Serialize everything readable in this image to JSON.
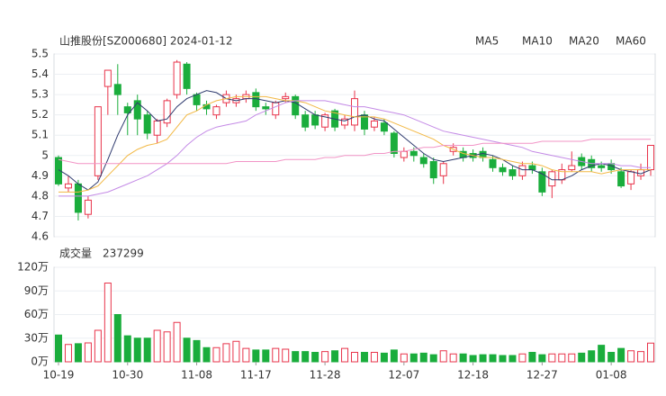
{
  "chart_data": [
    {
      "type": "candlestick",
      "title": "山推股份[SZ000680] 2024-01-12",
      "categories": [
        "10-19",
        null,
        null,
        null,
        null,
        null,
        null,
        "10-30",
        null,
        null,
        null,
        null,
        null,
        null,
        "11-08",
        null,
        null,
        null,
        null,
        null,
        "11-17",
        null,
        null,
        null,
        null,
        null,
        null,
        "11-28",
        null,
        null,
        null,
        null,
        null,
        null,
        null,
        "12-07",
        null,
        null,
        null,
        null,
        null,
        null,
        "12-18",
        null,
        null,
        null,
        null,
        null,
        null,
        "12-27",
        null,
        null,
        null,
        null,
        null,
        null,
        "01-08",
        null,
        null,
        null,
        null
      ],
      "open": [
        4.99,
        4.84,
        4.86,
        4.71,
        4.9,
        5.34,
        5.35,
        5.24,
        5.27,
        5.2,
        5.1,
        5.16,
        5.3,
        5.45,
        5.3,
        5.25,
        5.2,
        5.26,
        5.26,
        5.28,
        5.31,
        5.24,
        5.2,
        5.28,
        5.29,
        5.2,
        5.2,
        5.14,
        5.22,
        5.15,
        5.15,
        5.2,
        5.14,
        5.16,
        5.11,
        4.99,
        5.02,
        4.99,
        4.97,
        4.9,
        5.02,
        5.02,
        5.01,
        5.02,
        4.98,
        4.94,
        4.93,
        4.9,
        4.95,
        4.92,
        4.85,
        4.88,
        4.93,
        4.99,
        4.98,
        4.95,
        4.96,
        4.92,
        4.86,
        4.9,
        4.93
      ],
      "high": [
        5.0,
        4.9,
        4.88,
        4.8,
        5.24,
        5.42,
        5.45,
        5.26,
        5.3,
        5.22,
        5.18,
        5.28,
        5.47,
        5.46,
        5.31,
        5.27,
        5.25,
        5.32,
        5.3,
        5.32,
        5.33,
        5.26,
        5.27,
        5.31,
        5.3,
        5.22,
        5.22,
        5.21,
        5.23,
        5.2,
        5.32,
        5.22,
        5.19,
        5.18,
        5.12,
        5.04,
        5.04,
        5.01,
        4.99,
        4.97,
        5.06,
        5.04,
        5.03,
        5.04,
        5.0,
        4.96,
        4.95,
        4.97,
        4.97,
        4.94,
        4.93,
        4.96,
        5.02,
        5.01,
        5.0,
        4.97,
        4.98,
        4.94,
        4.93,
        4.96,
        5.05
      ],
      "low": [
        4.85,
        4.82,
        4.68,
        4.69,
        4.88,
        5.2,
        5.2,
        5.1,
        5.1,
        5.08,
        5.06,
        5.14,
        5.28,
        5.3,
        5.22,
        5.2,
        5.18,
        5.24,
        5.24,
        5.26,
        5.22,
        5.2,
        5.18,
        5.26,
        5.18,
        5.12,
        5.13,
        5.12,
        5.12,
        5.13,
        5.12,
        5.1,
        5.12,
        5.1,
        4.99,
        4.97,
        4.97,
        4.94,
        4.86,
        4.86,
        5.0,
        4.97,
        4.97,
        4.97,
        4.92,
        4.9,
        4.88,
        4.88,
        4.91,
        4.8,
        4.79,
        4.86,
        4.92,
        4.93,
        4.92,
        4.92,
        4.91,
        4.84,
        4.83,
        4.88,
        4.9
      ],
      "close": [
        4.86,
        4.86,
        4.72,
        4.78,
        5.24,
        5.42,
        5.3,
        5.21,
        5.18,
        5.11,
        5.17,
        5.27,
        5.46,
        5.33,
        5.25,
        5.23,
        5.24,
        5.3,
        5.28,
        5.3,
        5.24,
        5.23,
        5.26,
        5.29,
        5.2,
        5.14,
        5.15,
        5.2,
        5.14,
        5.18,
        5.28,
        5.13,
        5.17,
        5.12,
        5.01,
        5.02,
        5.0,
        4.96,
        4.89,
        4.96,
        5.04,
        4.99,
        4.99,
        4.99,
        4.94,
        4.92,
        4.9,
        4.95,
        4.93,
        4.82,
        4.92,
        4.93,
        4.95,
        4.95,
        4.94,
        4.94,
        4.93,
        4.85,
        4.92,
        4.93,
        5.05
      ],
      "up_color": "#e8334a",
      "down_color": "#1aad3c",
      "series": [
        {
          "name": "MA5",
          "color": "#2e3a6e",
          "values": [
            4.93,
            4.9,
            4.86,
            4.83,
            4.87,
            4.98,
            5.1,
            5.2,
            5.26,
            5.22,
            5.17,
            5.18,
            5.24,
            5.28,
            5.3,
            5.32,
            5.31,
            5.28,
            5.27,
            5.28,
            5.28,
            5.27,
            5.26,
            5.27,
            5.26,
            5.23,
            5.2,
            5.19,
            5.18,
            5.17,
            5.19,
            5.2,
            5.18,
            5.17,
            5.13,
            5.09,
            5.05,
            5.01,
            4.98,
            4.97,
            4.98,
            4.99,
            5.0,
            5.01,
            5.0,
            4.98,
            4.95,
            4.93,
            4.93,
            4.91,
            4.88,
            4.88,
            4.9,
            4.93,
            4.95,
            4.96,
            4.95,
            4.93,
            4.92,
            4.91,
            4.93
          ]
        },
        {
          "name": "MA10",
          "color": "#f2b844",
          "values": [
            4.82,
            4.82,
            4.82,
            4.83,
            4.85,
            4.9,
            4.95,
            5.0,
            5.03,
            5.05,
            5.06,
            5.08,
            5.14,
            5.2,
            5.22,
            5.25,
            5.27,
            5.28,
            5.29,
            5.29,
            5.29,
            5.29,
            5.28,
            5.27,
            5.27,
            5.26,
            5.24,
            5.22,
            5.21,
            5.2,
            5.19,
            5.19,
            5.19,
            5.18,
            5.16,
            5.14,
            5.12,
            5.1,
            5.08,
            5.05,
            5.03,
            5.01,
            5.0,
            4.99,
            4.99,
            4.98,
            4.97,
            4.96,
            4.96,
            4.95,
            4.93,
            4.92,
            4.92,
            4.92,
            4.92,
            4.91,
            4.92,
            4.93,
            4.93,
            4.93,
            4.93
          ]
        },
        {
          "name": "MA20",
          "color": "#c48ae6",
          "values": [
            4.8,
            4.8,
            4.8,
            4.8,
            4.81,
            4.82,
            4.84,
            4.86,
            4.88,
            4.9,
            4.93,
            4.96,
            5.0,
            5.05,
            5.09,
            5.12,
            5.14,
            5.15,
            5.16,
            5.17,
            5.2,
            5.22,
            5.24,
            5.26,
            5.27,
            5.27,
            5.27,
            5.27,
            5.26,
            5.25,
            5.24,
            5.24,
            5.23,
            5.22,
            5.21,
            5.2,
            5.18,
            5.16,
            5.14,
            5.12,
            5.11,
            5.1,
            5.09,
            5.08,
            5.07,
            5.06,
            5.05,
            5.04,
            5.02,
            5.01,
            5.0,
            4.99,
            4.98,
            4.97,
            4.96,
            4.96,
            4.96,
            4.95,
            4.95,
            4.94,
            4.94
          ]
        },
        {
          "name": "MA60",
          "color": "#f294c6",
          "values": [
            4.98,
            4.97,
            4.96,
            4.96,
            4.96,
            4.96,
            4.96,
            4.96,
            4.96,
            4.96,
            4.96,
            4.96,
            4.96,
            4.96,
            4.96,
            4.96,
            4.96,
            4.96,
            4.97,
            4.97,
            4.97,
            4.97,
            4.97,
            4.98,
            4.98,
            4.98,
            4.98,
            4.99,
            4.99,
            5.0,
            5.0,
            5.0,
            5.01,
            5.01,
            5.02,
            5.02,
            5.03,
            5.04,
            5.04,
            5.05,
            5.05,
            5.05,
            5.05,
            5.06,
            5.06,
            5.06,
            5.06,
            5.06,
            5.06,
            5.07,
            5.07,
            5.07,
            5.07,
            5.07,
            5.08,
            5.08,
            5.08,
            5.08,
            5.08,
            5.08,
            5.08
          ]
        }
      ],
      "ylim": [
        4.6,
        5.5
      ],
      "yticks": [
        4.6,
        4.7,
        4.8,
        4.9,
        5,
        5.1,
        5.2,
        5.3,
        5.4,
        5.5
      ],
      "grid": true
    },
    {
      "type": "bar",
      "title": "成交量",
      "latest": 237299,
      "values": [
        34,
        22,
        23,
        24,
        40,
        100,
        60,
        33,
        30,
        30,
        40,
        38,
        50,
        30,
        27,
        18,
        18,
        23,
        26,
        17,
        15,
        15,
        17,
        16,
        13,
        13,
        12,
        13,
        14,
        17,
        12,
        12,
        12,
        11,
        15,
        10,
        10,
        11,
        9,
        14,
        10,
        10,
        8,
        9,
        9,
        8,
        8,
        10,
        12,
        9,
        10,
        10,
        10,
        11,
        14,
        21,
        12,
        17,
        14,
        13,
        23.7299
      ],
      "ylim": [
        0,
        120
      ],
      "yticks": [
        {
          "value": 0,
          "label": "0万"
        },
        {
          "value": 30,
          "label": "30万"
        },
        {
          "value": 60,
          "label": "60万"
        },
        {
          "value": 90,
          "label": "90万"
        },
        {
          "value": 120,
          "label": "120万"
        }
      ],
      "grid": true
    }
  ]
}
